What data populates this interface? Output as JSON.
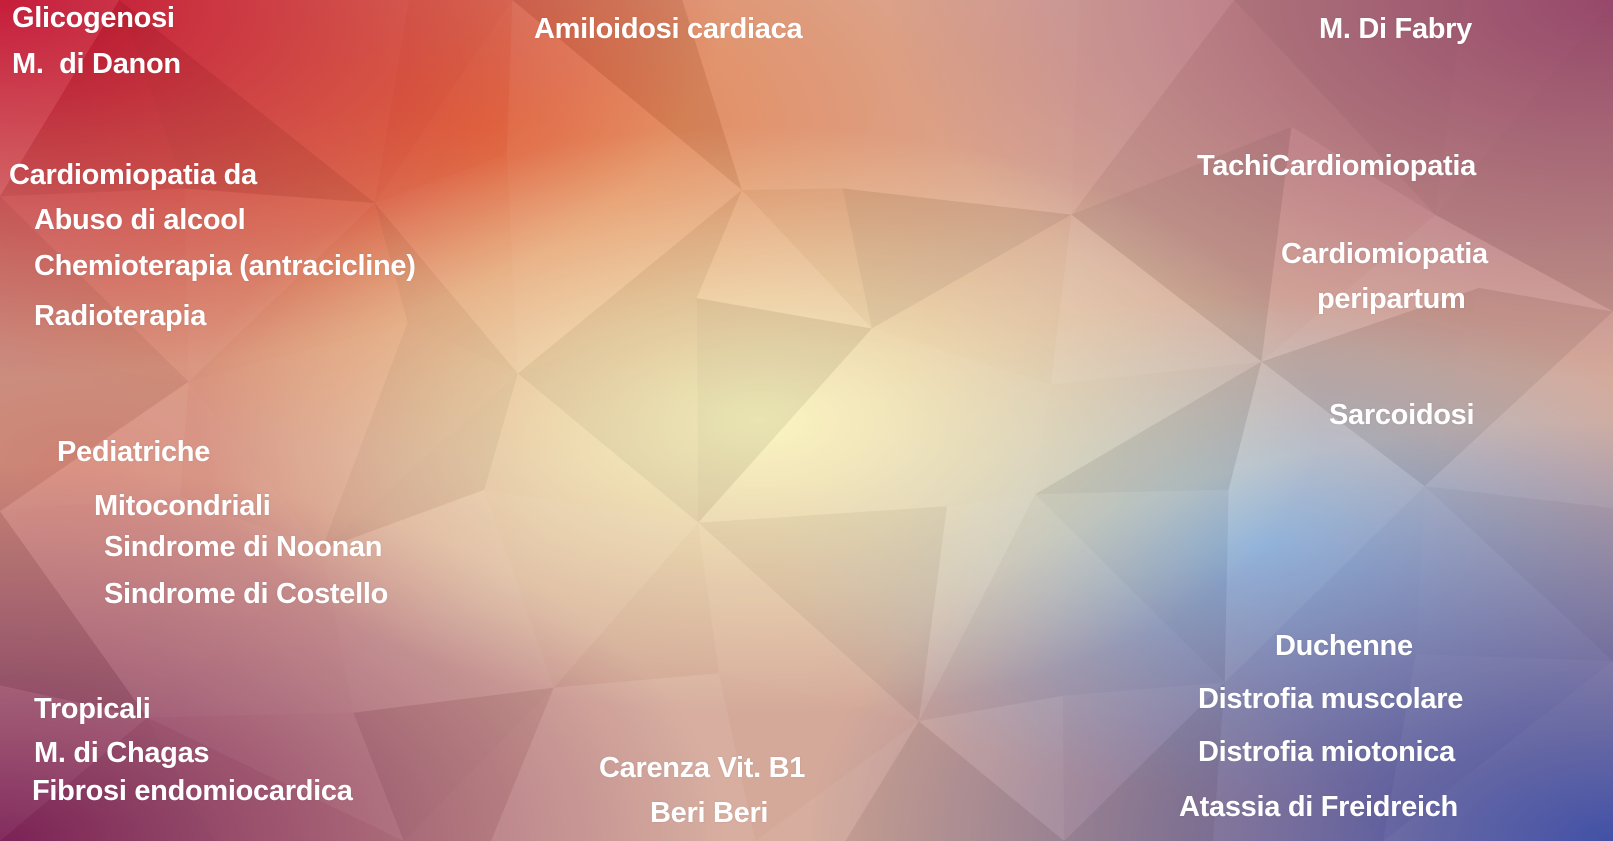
{
  "slide": {
    "labels": {
      "glicogenosi": "Glicogenosi",
      "danon": "M.  di Danon",
      "amiloidosi": "Amiloidosi cardiaca",
      "fabry": "M. Di Fabry",
      "cardiomiopatia_da": "Cardiomiopatia da",
      "alcool": "Abuso di alcool",
      "chemioterapia": "Chemioterapia (antracicline)",
      "radioterapia": "Radioterapia",
      "tachi": "TachiCardiomiopatia",
      "peripartum_1": "Cardiomiopatia",
      "peripartum_2": "peripartum",
      "sarcoidosi": "Sarcoidosi",
      "pediatriche": "Pediatriche",
      "mitocondriali": "Mitocondriali",
      "noonan": "Sindrome di Noonan",
      "costello": "Sindrome di Costello",
      "tropicali": "Tropicali",
      "chagas": "M. di Chagas",
      "fibrosi": "Fibrosi endomiocardica",
      "carenza": "Carenza Vit. B1",
      "beriberi": "Beri Beri",
      "duchenne": "Duchenne",
      "distrofia_muscolare": "Distrofia muscolare",
      "distrofia_miotonica": "Distrofia miotonica",
      "atassia": "Atassia di Freidreich"
    },
    "colors": {
      "text": "#ffffff",
      "top_left": "#c20a2a",
      "top": "#e98a4c",
      "center": "#f7f0b0",
      "top_right": "#a8607a",
      "right": "#c4b8c8",
      "bottom_right": "#3c4aa2",
      "bottom_center": "#a0a8c8",
      "bottom_left": "#8a2a5a"
    }
  }
}
